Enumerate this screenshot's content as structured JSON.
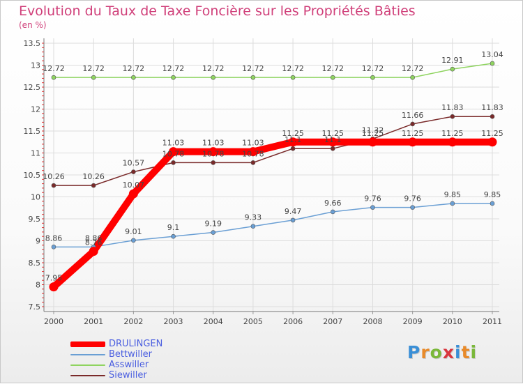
{
  "chart_data": {
    "type": "line",
    "title": "Evolution du Taux de Taxe Foncière sur les Propriétés Bâties",
    "ylabel": "(en %)",
    "xlabel": "",
    "ylim": [
      7.5,
      13.5
    ],
    "yticks": [
      "7.5",
      "8",
      "8.5",
      "9",
      "9.5",
      "10",
      "10.5",
      "11",
      "11.5",
      "12",
      "12.5",
      "13",
      "13.5"
    ],
    "categories": [
      "2000",
      "2001",
      "2002",
      "2003",
      "2004",
      "2005",
      "2006",
      "2007",
      "2008",
      "2009",
      "2010",
      "2011"
    ],
    "grid": true,
    "series": [
      {
        "name": "DRULINGEN",
        "color": "#ff0000",
        "values": [
          7.95,
          8.76,
          10.07,
          11.03,
          11.03,
          11.03,
          11.25,
          11.25,
          11.25,
          11.25,
          11.25,
          11.25
        ],
        "labels": [
          "7.95",
          "8.76",
          "10.07",
          "11.03",
          "11.03",
          "11.03",
          "11.25",
          "11.25",
          "11.25",
          "11.25",
          "11.25",
          "11.25"
        ]
      },
      {
        "name": "Bettwiller",
        "color": "#6a9fd4",
        "values": [
          8.86,
          8.86,
          9.01,
          9.1,
          9.19,
          9.33,
          9.47,
          9.66,
          9.76,
          9.76,
          9.85,
          9.85
        ],
        "labels": [
          "8.86",
          "8.86",
          "9.01",
          "9.1",
          "9.19",
          "9.33",
          "9.47",
          "9.66",
          "9.76",
          "9.76",
          "9.85",
          "9.85"
        ]
      },
      {
        "name": "Asswiller",
        "color": "#8fd460",
        "values": [
          12.72,
          12.72,
          12.72,
          12.72,
          12.72,
          12.72,
          12.72,
          12.72,
          12.72,
          12.72,
          12.91,
          13.04
        ],
        "labels": [
          "12.72",
          "12.72",
          "12.72",
          "12.72",
          "12.72",
          "12.72",
          "12.72",
          "12.72",
          "12.72",
          "12.72",
          "12.91",
          "13.04"
        ]
      },
      {
        "name": "Siewiller",
        "color": "#7a2a2a",
        "values": [
          10.26,
          10.26,
          10.57,
          10.78,
          10.78,
          10.78,
          11.1,
          11.1,
          11.32,
          11.66,
          11.83,
          11.83
        ],
        "labels": [
          "10.26",
          "10.26",
          "10.57",
          "10.78",
          "10.78",
          "10.78",
          "11.1",
          "11.1",
          "11.32",
          "11.66",
          "11.83",
          "11.83"
        ]
      }
    ]
  },
  "legend": {
    "items": [
      "DRULINGEN",
      "Bettwiller",
      "Asswiller",
      "Siewiller"
    ]
  },
  "brand": {
    "letters": [
      "P",
      "r",
      "o",
      "x",
      "i",
      "t",
      "i"
    ],
    "colors": [
      "#3a8fd6",
      "#e88a2a",
      "#7ab83a",
      "#d9363e",
      "#3a8fd6",
      "#e88a2a",
      "#7ab83a"
    ]
  }
}
